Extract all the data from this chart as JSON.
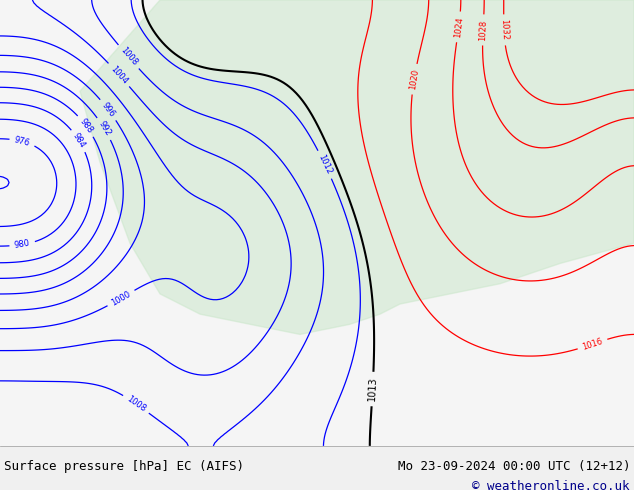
{
  "title_left": "Surface pressure [hPa] EC (AIFS)",
  "title_right": "Mo 23-09-2024 00:00 UTC (12+12)",
  "copyright": "© weatheronline.co.uk",
  "bg_color": "#f0f0f0",
  "map_bg": "#ffffff",
  "footer_bg": "#e8e8e8",
  "footer_text_color": "#000000",
  "copyright_color": "#00008B"
}
